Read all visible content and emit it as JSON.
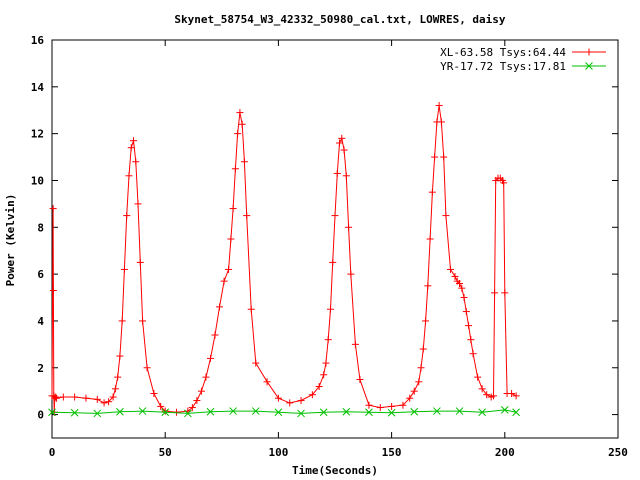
{
  "chart_data": {
    "type": "line",
    "title": "Skynet_58754_W3_42332_50980_cal.txt, LOWRES, daisy",
    "xlabel": "Time(Seconds)",
    "ylabel": "Power (Kelvin)",
    "xlim": [
      0,
      250
    ],
    "ylim": [
      -1,
      16
    ],
    "x_ticks": [
      "0",
      "50",
      "100",
      "150",
      "200",
      "250"
    ],
    "y_ticks": [
      "0",
      "2",
      "4",
      "6",
      "8",
      "10",
      "12",
      "14",
      "16"
    ],
    "x_tick_values": [
      0,
      50,
      100,
      150,
      200,
      250
    ],
    "y_tick_values": [
      0,
      2,
      4,
      6,
      8,
      10,
      12,
      14,
      16
    ],
    "legend_position": "top-right",
    "grid": false,
    "series": [
      {
        "name": "XL-63.58 Tsys:64.44",
        "color": "#ff0000",
        "marker": "plus",
        "x": [
          0,
          0.5,
          0.6,
          0.8,
          1.0,
          1.2,
          1.6,
          2,
          5,
          10,
          15,
          20,
          23,
          25,
          27,
          28,
          29,
          30,
          31,
          32,
          33,
          34,
          35,
          36,
          37,
          38,
          39,
          40,
          42,
          45,
          48,
          50,
          55,
          60,
          62,
          64,
          66,
          68,
          70,
          72,
          74,
          76,
          78,
          79,
          80,
          81,
          82,
          83,
          84,
          85,
          86,
          88,
          90,
          95,
          100,
          105,
          110,
          115,
          118,
          120,
          121,
          122,
          123,
          124,
          125,
          126,
          127,
          128,
          129,
          130,
          131,
          132,
          134,
          136,
          140,
          145,
          150,
          155,
          158,
          160,
          162,
          163,
          164,
          165,
          166,
          167,
          168,
          169,
          170,
          171,
          172,
          173,
          174,
          176,
          178,
          179,
          180,
          181,
          182,
          183,
          184,
          185,
          186,
          188,
          190,
          192,
          194,
          195,
          195.5,
          196,
          197,
          198,
          199,
          199.5,
          200,
          201,
          203,
          205
        ],
        "y": [
          0.8,
          8.8,
          5.3,
          0.8,
          0.1,
          0.7,
          0.75,
          0.7,
          0.75,
          0.75,
          0.7,
          0.65,
          0.5,
          0.55,
          0.75,
          1.1,
          1.6,
          2.5,
          4.0,
          6.2,
          8.5,
          10.2,
          11.4,
          11.7,
          10.8,
          9.0,
          6.5,
          4.0,
          2.0,
          0.9,
          0.35,
          0.15,
          0.1,
          0.15,
          0.3,
          0.6,
          1.0,
          1.6,
          2.4,
          3.4,
          4.6,
          5.7,
          6.2,
          7.5,
          8.8,
          10.5,
          12.0,
          12.9,
          12.4,
          10.8,
          8.5,
          4.5,
          2.2,
          1.4,
          0.7,
          0.5,
          0.6,
          0.85,
          1.2,
          1.7,
          2.2,
          3.2,
          4.5,
          6.5,
          8.5,
          10.3,
          11.6,
          11.8,
          11.3,
          10.2,
          8.0,
          6.0,
          3.0,
          1.5,
          0.4,
          0.3,
          0.35,
          0.4,
          0.7,
          1.0,
          1.4,
          2.0,
          2.8,
          4.0,
          5.5,
          7.5,
          9.5,
          11.0,
          12.5,
          13.2,
          12.5,
          11.0,
          8.5,
          6.2,
          5.9,
          5.7,
          5.6,
          5.4,
          5.0,
          4.4,
          3.8,
          3.2,
          2.6,
          1.6,
          1.1,
          0.85,
          0.75,
          0.8,
          5.2,
          10.0,
          10.1,
          10.1,
          10.0,
          9.9,
          5.2,
          0.9,
          0.9,
          0.8
        ]
      },
      {
        "name": "YR-17.72 Tsys:17.81",
        "color": "#00c000",
        "marker": "x",
        "x": [
          0,
          10,
          20,
          30,
          40,
          50,
          60,
          70,
          80,
          90,
          100,
          110,
          120,
          130,
          140,
          150,
          160,
          170,
          180,
          190,
          200,
          205
        ],
        "y": [
          0.1,
          0.08,
          0.05,
          0.12,
          0.15,
          0.1,
          0.05,
          0.12,
          0.15,
          0.15,
          0.1,
          0.05,
          0.1,
          0.12,
          0.1,
          0.08,
          0.12,
          0.15,
          0.15,
          0.1,
          0.2,
          0.1
        ]
      }
    ]
  }
}
